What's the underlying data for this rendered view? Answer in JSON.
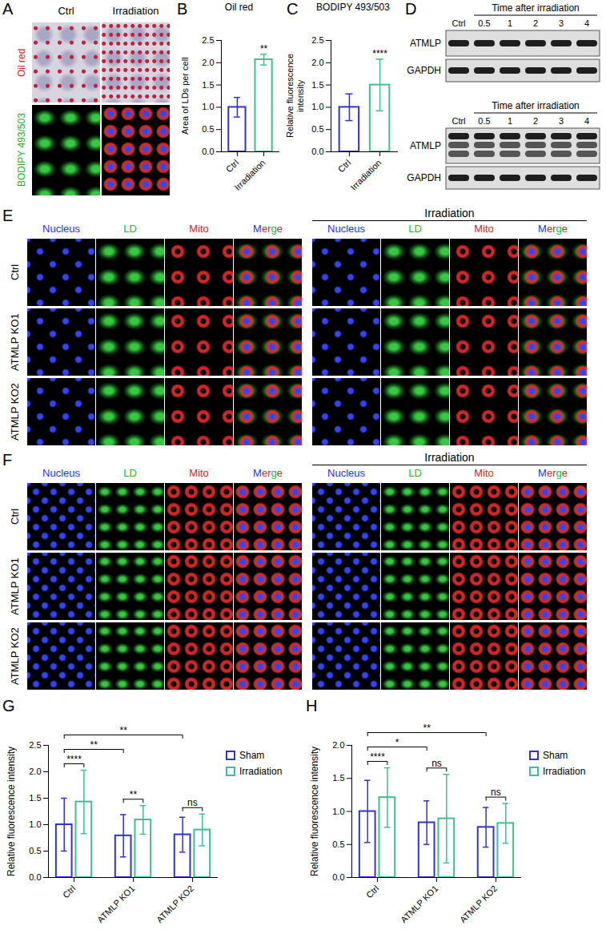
{
  "chart_data": [
    {
      "letter": "B",
      "type": "bar",
      "title": "Oil red",
      "ylabel": "Area of LDs per cell",
      "categories": [
        "Ctrl",
        "Irradiation"
      ],
      "values": [
        1.0,
        2.07
      ],
      "errors": [
        0.22,
        0.12
      ],
      "colors": [
        "#3333cc",
        "#3dbf8f"
      ],
      "ylim": [
        0,
        2.5
      ],
      "yticks": [
        {
          "value": 0,
          "label": "0.0"
        },
        0.5,
        {
          "value": 1,
          "label": "1.0"
        },
        1.5,
        {
          "value": 2,
          "label": "2.0"
        },
        2.5
      ],
      "annotations": [
        {
          "category": "Irradiation",
          "text": "**"
        }
      ]
    },
    {
      "letter": "C",
      "type": "bar",
      "title": "BODIPY 493/503",
      "ylabel": "Relative fluorescence intensity",
      "categories": [
        "Ctrl",
        "Irradiation"
      ],
      "values": [
        1.0,
        1.5
      ],
      "errors": [
        0.3,
        0.58
      ],
      "colors": [
        "#3333cc",
        "#3dbf8f"
      ],
      "ylim": [
        0,
        2.5
      ],
      "yticks": [
        {
          "value": 0,
          "label": "0.0"
        },
        0.5,
        {
          "value": 1,
          "label": "1.0"
        },
        1.5,
        {
          "value": 2,
          "label": "2.0"
        },
        2.5
      ],
      "annotations": [
        {
          "category": "Irradiation",
          "text": "****"
        }
      ]
    },
    {
      "letter": "G",
      "type": "bar",
      "ylabel": "Relative fluorescence intensity",
      "categories": [
        "Ctrl",
        "ATMLP KO1",
        "ATMLP KO2"
      ],
      "series": [
        {
          "name": "Sham",
          "color": "#3333cc",
          "values": [
            1.0,
            0.79,
            0.81
          ],
          "errors": [
            0.5,
            0.4,
            0.33
          ]
        },
        {
          "name": "Irradiation",
          "color": "#3dbf8f",
          "values": [
            1.43,
            1.09,
            0.9
          ],
          "errors": [
            0.6,
            0.27,
            0.3
          ]
        }
      ],
      "ylim": [
        0,
        2.5
      ],
      "yticks": [
        {
          "value": 0,
          "label": "0.0"
        },
        0.5,
        {
          "value": 1,
          "label": "1.0"
        },
        1.5,
        {
          "value": 2,
          "label": "2.0"
        },
        2.5
      ],
      "legend": "right",
      "annotations": [
        {
          "from": [
            "Ctrl",
            "Sham"
          ],
          "to": [
            "Ctrl",
            "Irradiation"
          ],
          "text": "****"
        },
        {
          "from": [
            "ATMLP KO1",
            "Sham"
          ],
          "to": [
            "ATMLP KO1",
            "Irradiation"
          ],
          "text": "**"
        },
        {
          "from": [
            "ATMLP KO2",
            "Sham"
          ],
          "to": [
            "ATMLP KO2",
            "Irradiation"
          ],
          "text": "ns"
        },
        {
          "from": [
            "Ctrl",
            "Sham"
          ],
          "to": [
            "ATMLP KO1",
            "Sham"
          ],
          "text": "**"
        },
        {
          "from": [
            "Ctrl",
            "Sham"
          ],
          "to": [
            "ATMLP KO2",
            "Sham"
          ],
          "text": "**"
        }
      ]
    },
    {
      "letter": "H",
      "type": "bar",
      "ylabel": "Relative fluorescence intensity",
      "categories": [
        "Ctrl",
        "ATMLP KO1",
        "ATMLP KO2"
      ],
      "series": [
        {
          "name": "Sham",
          "color": "#3333cc",
          "values": [
            1.0,
            0.83,
            0.76
          ],
          "errors": [
            0.47,
            0.33,
            0.3
          ]
        },
        {
          "name": "Irradiation",
          "color": "#3dbf8f",
          "values": [
            1.21,
            0.89,
            0.82
          ],
          "errors": [
            0.45,
            0.67,
            0.3
          ]
        }
      ],
      "ylim": [
        0,
        2
      ],
      "yticks": [
        {
          "value": 0,
          "label": "0.0"
        },
        0.5,
        {
          "value": 1,
          "label": "1.0"
        },
        1.5,
        {
          "value": 2,
          "label": "2.0"
        }
      ],
      "legend": "right",
      "annotations": [
        {
          "from": [
            "Ctrl",
            "Sham"
          ],
          "to": [
            "Ctrl",
            "Irradiation"
          ],
          "text": "****"
        },
        {
          "from": [
            "ATMLP KO1",
            "Sham"
          ],
          "to": [
            "ATMLP KO1",
            "Irradiation"
          ],
          "text": "ns"
        },
        {
          "from": [
            "ATMLP KO2",
            "Sham"
          ],
          "to": [
            "ATMLP KO2",
            "Irradiation"
          ],
          "text": "ns"
        },
        {
          "from": [
            "Ctrl",
            "Sham"
          ],
          "to": [
            "ATMLP KO1",
            "Sham"
          ],
          "text": "*"
        },
        {
          "from": [
            "Ctrl",
            "Sham"
          ],
          "to": [
            "ATMLP KO2",
            "Sham"
          ],
          "text": "**"
        }
      ]
    }
  ],
  "panels": {
    "A": {
      "letter": "A",
      "columns": [
        "Ctrl",
        "Irradiation"
      ],
      "rows": [
        {
          "label": "Oil red",
          "color": "#cc2222"
        },
        {
          "label": "BODIPY 493/503",
          "color": "#22aa33"
        }
      ]
    },
    "D": {
      "letter": "D",
      "header": "Time after irradiation",
      "lanes": [
        "Ctrl",
        "0.5",
        "1",
        "2",
        "3",
        "4"
      ],
      "blots": [
        [
          "ATMLP",
          "GAPDH"
        ],
        [
          "ATMLP",
          "GAPDH"
        ]
      ]
    },
    "E": {
      "letter": "E",
      "group_header": "Irradiation",
      "channels": [
        "Nucleus",
        "LD",
        "Mito",
        "Merge"
      ],
      "rows": [
        "Ctrl",
        "ATMLP KO1",
        "ATMLP KO2"
      ]
    },
    "F": {
      "letter": "F",
      "group_header": "Irradiation",
      "channels": [
        "Nucleus",
        "LD",
        "Mito",
        "Merge"
      ],
      "rows": [
        "Ctrl",
        "ATMLP KO1",
        "ATMLP KO2"
      ]
    }
  }
}
